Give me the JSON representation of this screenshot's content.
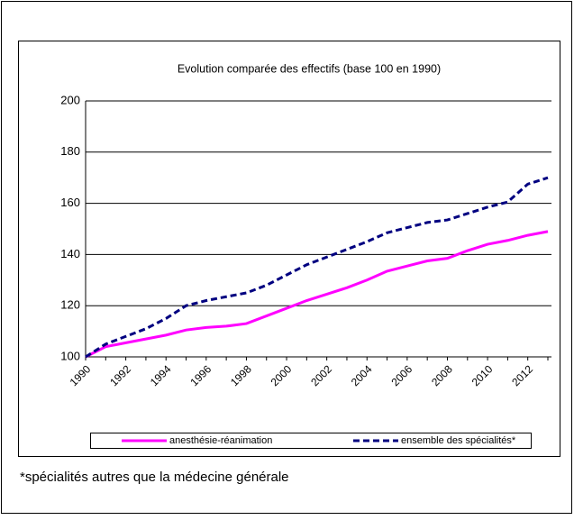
{
  "chart_data": {
    "type": "line",
    "title": "Evolution comparée des effectifs (base 100 en 1990)",
    "categories": [
      "1990",
      null,
      "1992",
      null,
      "1994",
      null,
      "1996",
      null,
      "1998",
      null,
      "2000",
      null,
      "2002",
      null,
      "2004",
      null,
      "2006",
      null,
      "2008",
      null,
      "2010",
      null,
      "2012",
      null
    ],
    "series": [
      {
        "name": "anesthésie-réanimation",
        "color": "#ff00ff",
        "dashed": false,
        "values": [
          100,
          104,
          105.5,
          107,
          108.5,
          110.5,
          111.5,
          112,
          113,
          116,
          119,
          122,
          124.5,
          127,
          130,
          133.5,
          135.5,
          137.5,
          138.5,
          141.5,
          144,
          145.5,
          147.5,
          149
        ]
      },
      {
        "name": "ensemble des spécialités*",
        "color": "#000080",
        "dashed": true,
        "values": [
          100,
          105,
          108,
          111,
          115,
          120,
          122,
          123.5,
          125,
          128,
          132,
          136,
          139,
          142,
          145,
          148.5,
          150.5,
          152.5,
          153.5,
          156,
          158.5,
          160.5,
          167.5,
          170
        ]
      }
    ],
    "ylim": [
      100,
      200
    ],
    "yticks": [
      100,
      120,
      140,
      160,
      180,
      200
    ],
    "grid": true,
    "legend": "bottom"
  },
  "footnote": "*spécialités autres que la médecine générale"
}
